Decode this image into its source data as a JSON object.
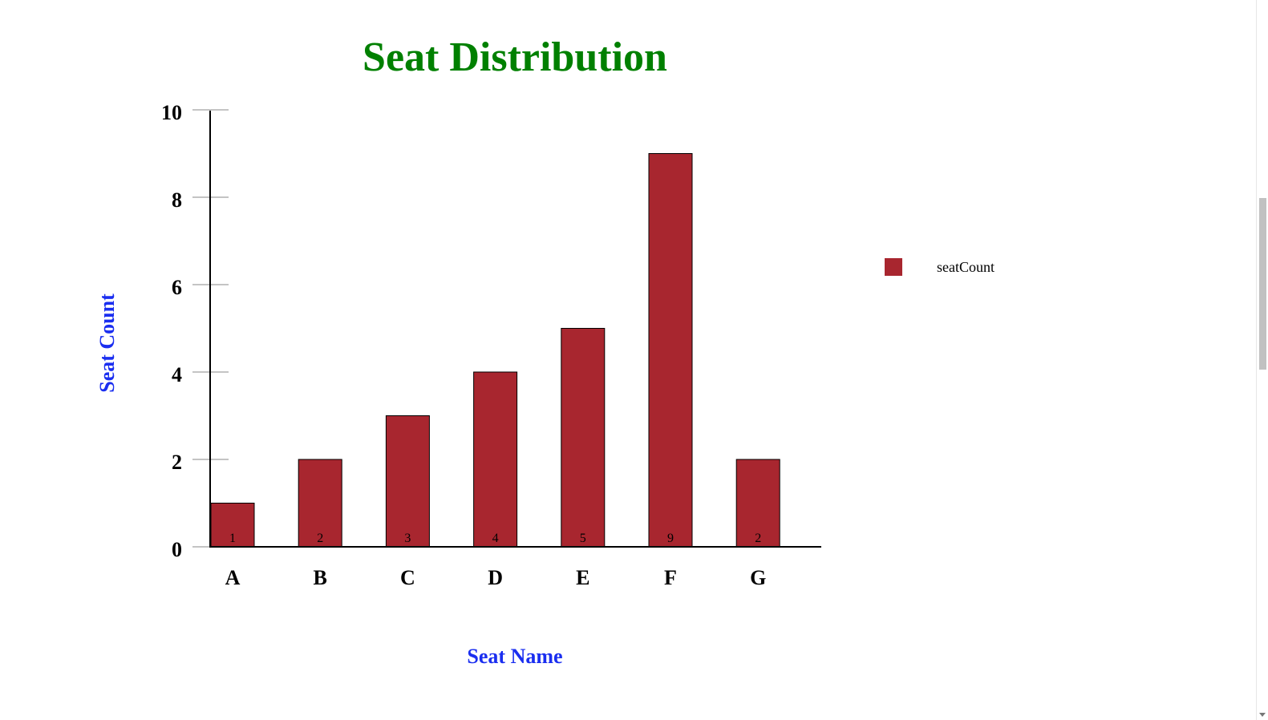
{
  "chart_data": {
    "type": "bar",
    "title": "Seat Distribution",
    "xlabel": "Seat Name",
    "ylabel": "Seat Count",
    "categories": [
      "A",
      "B",
      "C",
      "D",
      "E",
      "F",
      "G"
    ],
    "series": [
      {
        "name": "seatCount",
        "values": [
          1,
          2,
          3,
          4,
          5,
          9,
          2
        ]
      }
    ],
    "ylim": [
      0,
      10
    ],
    "yticks": [
      "0",
      "2",
      "4",
      "6",
      "8",
      "10"
    ],
    "data_labels": [
      "1",
      "2",
      "3",
      "4",
      "5",
      "9",
      "2"
    ],
    "legend_position": "right",
    "grid": false
  },
  "colors": {
    "title": "#008000",
    "axis_title": "#1a2ef0",
    "bar": "#a8262f",
    "bar_stroke": "#000000"
  }
}
